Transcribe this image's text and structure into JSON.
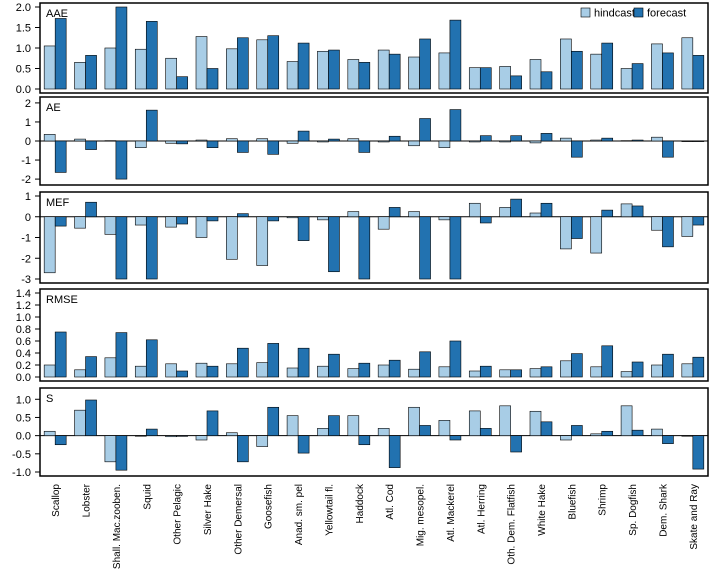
{
  "chart_data": {
    "type": "bar",
    "categories": [
      "Scallop",
      "Lobster",
      "Shall. Mac.zooben.",
      "Squid",
      "Other Pelagic",
      "Silver Hake",
      "Other Demersal",
      "Goosefish",
      "Anad. sm. pel",
      "Yellowtail fl.",
      "Haddock",
      "Atl. Cod",
      "Mig. mesopel.",
      "Atl. Mackerel",
      "Atl. Herring",
      "Oth. Dem. Flatfish",
      "White Hake",
      "Bluefish",
      "Shrimp",
      "Sp. Dogfish",
      "Dem. Shark",
      "Skate and Ray"
    ],
    "legend": [
      {
        "name": "hindcast",
        "color": "#a8cde6"
      },
      {
        "name": "forecast",
        "color": "#2272b0"
      }
    ],
    "panels": [
      {
        "title": "AAE",
        "ylim": [
          0,
          2.0
        ],
        "ticks": [
          0,
          0.5,
          1.0,
          1.5,
          2.0
        ],
        "tick_labels": [
          "0.0",
          "0.5",
          "1.0",
          "1.5",
          "2.0"
        ],
        "series": [
          {
            "name": "hindcast",
            "values": [
              1.05,
              0.65,
              1.0,
              0.97,
              0.75,
              1.28,
              0.98,
              1.2,
              0.67,
              0.92,
              0.72,
              0.95,
              0.78,
              0.88,
              0.52,
              0.55,
              0.72,
              1.22,
              0.85,
              0.5,
              1.1,
              1.25
            ]
          },
          {
            "name": "forecast",
            "values": [
              1.72,
              0.82,
              2.0,
              1.65,
              0.3,
              0.5,
              1.25,
              1.3,
              1.12,
              0.95,
              0.65,
              0.85,
              1.22,
              1.68,
              0.52,
              0.32,
              0.42,
              0.92,
              1.12,
              0.62,
              0.88,
              0.82
            ]
          }
        ]
      },
      {
        "title": "AE",
        "ylim": [
          -2.1,
          2.1
        ],
        "ticks": [
          -2,
          -1,
          0,
          1,
          2
        ],
        "tick_labels": [
          "-2",
          "-1",
          "0",
          "1",
          "2"
        ],
        "series": [
          {
            "name": "hindcast",
            "values": [
              0.35,
              0.1,
              0.02,
              -0.35,
              -0.12,
              0.05,
              0.12,
              0.12,
              -0.12,
              -0.05,
              0.12,
              -0.05,
              -0.25,
              -0.35,
              -0.05,
              -0.05,
              -0.1,
              0.15,
              0.05,
              0.02,
              0.2,
              0.0
            ]
          },
          {
            "name": "forecast",
            "values": [
              -1.65,
              -0.45,
              -2.0,
              1.62,
              -0.15,
              -0.35,
              -0.6,
              -0.7,
              0.52,
              0.1,
              -0.6,
              0.25,
              1.18,
              1.65,
              0.28,
              0.28,
              0.4,
              -0.85,
              0.15,
              0.05,
              -0.85,
              -0.03
            ]
          }
        ]
      },
      {
        "title": "MEF",
        "ylim": [
          -3.0,
          1.0
        ],
        "ticks": [
          -3,
          -2,
          -1,
          0,
          1
        ],
        "tick_labels": [
          "-3",
          "-2",
          "-1",
          "0",
          "1"
        ],
        "series": [
          {
            "name": "hindcast",
            "values": [
              -2.7,
              -0.55,
              -0.85,
              -0.4,
              -0.5,
              -1.0,
              -2.05,
              -2.35,
              -0.05,
              -0.15,
              0.25,
              -0.6,
              0.25,
              -0.15,
              0.65,
              0.45,
              0.18,
              -1.55,
              -1.75,
              0.62,
              -0.65,
              -0.95
            ]
          },
          {
            "name": "forecast",
            "values": [
              -0.45,
              0.7,
              -3.0,
              -3.0,
              -0.35,
              -0.2,
              0.15,
              -0.2,
              -1.15,
              -2.65,
              -3.0,
              0.45,
              -3.0,
              -3.0,
              -0.3,
              0.85,
              0.65,
              -1.05,
              0.32,
              0.52,
              -1.45,
              -0.4
            ]
          }
        ]
      },
      {
        "title": "RMSE",
        "ylim": [
          0,
          1.4
        ],
        "ticks": [
          0,
          0.2,
          0.4,
          0.6,
          0.8,
          1.0,
          1.2,
          1.4
        ],
        "tick_labels": [
          "0.0",
          "0.2",
          "0.4",
          "0.6",
          "0.8",
          "1.0",
          "1.2",
          "1.4"
        ],
        "series": [
          {
            "name": "hindcast",
            "values": [
              0.2,
              0.12,
              0.32,
              0.18,
              0.22,
              0.23,
              0.22,
              0.24,
              0.15,
              0.18,
              0.14,
              0.2,
              0.13,
              0.17,
              0.1,
              0.12,
              0.14,
              0.27,
              0.17,
              0.09,
              0.2,
              0.22
            ]
          },
          {
            "name": "forecast",
            "values": [
              0.75,
              0.34,
              0.74,
              0.62,
              0.1,
              0.18,
              0.48,
              0.56,
              0.48,
              0.38,
              0.23,
              0.28,
              0.42,
              0.6,
              0.18,
              0.12,
              0.17,
              0.39,
              0.52,
              0.25,
              0.38,
              0.33
            ]
          }
        ]
      },
      {
        "title": "S",
        "ylim": [
          -1.0,
          1.2
        ],
        "ticks": [
          -1.0,
          -0.5,
          0.0,
          0.5,
          1.0
        ],
        "tick_labels": [
          "-1.0",
          "-0.5",
          "0.0",
          "0.5",
          "1.0"
        ],
        "series": [
          {
            "name": "hindcast",
            "values": [
              0.12,
              0.7,
              -0.72,
              0.0,
              -0.03,
              -0.12,
              0.08,
              -0.3,
              0.55,
              0.2,
              0.55,
              0.2,
              0.78,
              0.42,
              0.68,
              0.82,
              0.67,
              -0.12,
              0.05,
              0.82,
              0.18,
              0.0
            ]
          },
          {
            "name": "forecast",
            "values": [
              -0.25,
              0.98,
              -0.95,
              0.18,
              -0.02,
              0.68,
              -0.72,
              0.78,
              -0.48,
              0.55,
              -0.25,
              -0.88,
              0.28,
              -0.12,
              0.2,
              -0.45,
              0.38,
              0.28,
              0.12,
              0.15,
              -0.22,
              -0.92
            ]
          }
        ]
      }
    ]
  }
}
